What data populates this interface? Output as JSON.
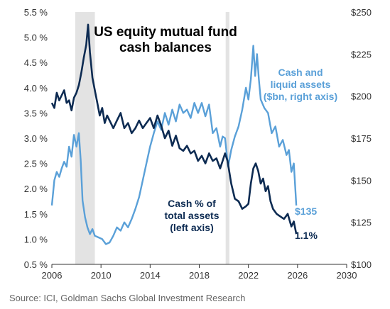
{
  "chart_data": {
    "type": "line",
    "title_lines": [
      "US equity mutual fund",
      "cash balances"
    ],
    "source": "Source: ICI, Goldman Sachs Global Investment Research",
    "x_ticks": [
      "2006",
      "2010",
      "2014",
      "2018",
      "2022",
      "2026",
      "2030"
    ],
    "xlim": [
      2006,
      2030
    ],
    "y_left": {
      "ticks": [
        "0.5 %",
        "1.0 %",
        "1.5 %",
        "2.0 %",
        "2.5 %",
        "3.0 %",
        "3.5 %",
        "4.0 %",
        "4.5 %",
        "5.0 %",
        "5.5 %"
      ],
      "ylim": [
        0.5,
        5.5
      ]
    },
    "y_right": {
      "ticks": [
        "$100",
        "$125",
        "$150",
        "$175",
        "$200",
        "$225",
        "$250"
      ],
      "ylim": [
        100,
        250
      ]
    },
    "shaded_periods": [
      [
        2007.9,
        2009.5
      ],
      [
        2020.15,
        2020.45
      ]
    ],
    "colors": {
      "cash_pct": "#0d2b52",
      "cash_assets": "#5aa0d8",
      "shade": "#e3e3e3"
    },
    "series": [
      {
        "key": "cash_pct",
        "axis": "left",
        "label_lines": [
          "Cash % of",
          "total assets",
          "(left axis)"
        ],
        "end_label": "1.1%",
        "points": [
          [
            2006.0,
            3.7
          ],
          [
            2006.2,
            3.6
          ],
          [
            2006.4,
            3.9
          ],
          [
            2006.6,
            3.75
          ],
          [
            2006.8,
            3.85
          ],
          [
            2007.0,
            3.95
          ],
          [
            2007.2,
            3.7
          ],
          [
            2007.4,
            3.75
          ],
          [
            2007.6,
            3.55
          ],
          [
            2007.8,
            3.8
          ],
          [
            2008.0,
            3.9
          ],
          [
            2008.2,
            4.05
          ],
          [
            2008.4,
            4.3
          ],
          [
            2008.6,
            4.6
          ],
          [
            2008.8,
            4.85
          ],
          [
            2008.95,
            5.25
          ],
          [
            2009.1,
            4.7
          ],
          [
            2009.3,
            4.2
          ],
          [
            2009.5,
            3.95
          ],
          [
            2009.7,
            3.7
          ],
          [
            2009.9,
            3.45
          ],
          [
            2010.1,
            3.6
          ],
          [
            2010.3,
            3.3
          ],
          [
            2010.5,
            3.45
          ],
          [
            2010.8,
            3.3
          ],
          [
            2011.0,
            3.2
          ],
          [
            2011.3,
            3.35
          ],
          [
            2011.6,
            3.5
          ],
          [
            2011.9,
            3.2
          ],
          [
            2012.2,
            3.3
          ],
          [
            2012.5,
            3.1
          ],
          [
            2012.8,
            3.2
          ],
          [
            2013.1,
            3.35
          ],
          [
            2013.4,
            3.2
          ],
          [
            2013.7,
            3.3
          ],
          [
            2014.0,
            3.4
          ],
          [
            2014.3,
            3.2
          ],
          [
            2014.6,
            3.45
          ],
          [
            2014.9,
            3.25
          ],
          [
            2015.2,
            3.0
          ],
          [
            2015.5,
            3.15
          ],
          [
            2015.8,
            2.85
          ],
          [
            2016.1,
            3.05
          ],
          [
            2016.4,
            2.8
          ],
          [
            2016.7,
            2.75
          ],
          [
            2017.0,
            2.85
          ],
          [
            2017.3,
            2.7
          ],
          [
            2017.6,
            2.75
          ],
          [
            2017.9,
            2.55
          ],
          [
            2018.2,
            2.65
          ],
          [
            2018.5,
            2.5
          ],
          [
            2018.8,
            2.7
          ],
          [
            2019.1,
            2.55
          ],
          [
            2019.4,
            2.6
          ],
          [
            2019.7,
            2.4
          ],
          [
            2019.9,
            2.55
          ],
          [
            2020.1,
            2.7
          ],
          [
            2020.3,
            2.55
          ],
          [
            2020.6,
            2.1
          ],
          [
            2020.9,
            1.8
          ],
          [
            2021.2,
            1.75
          ],
          [
            2021.5,
            1.6
          ],
          [
            2021.8,
            1.65
          ],
          [
            2022.0,
            1.7
          ],
          [
            2022.2,
            2.1
          ],
          [
            2022.4,
            2.4
          ],
          [
            2022.6,
            2.5
          ],
          [
            2022.8,
            2.35
          ],
          [
            2023.0,
            2.1
          ],
          [
            2023.2,
            2.2
          ],
          [
            2023.4,
            1.95
          ],
          [
            2023.6,
            2.05
          ],
          [
            2023.8,
            1.75
          ],
          [
            2024.0,
            1.6
          ],
          [
            2024.3,
            1.5
          ],
          [
            2024.6,
            1.45
          ],
          [
            2024.9,
            1.4
          ],
          [
            2025.2,
            1.5
          ],
          [
            2025.5,
            1.25
          ],
          [
            2025.7,
            1.35
          ],
          [
            2025.9,
            1.1
          ]
        ]
      },
      {
        "key": "cash_assets",
        "axis": "right",
        "label_lines": [
          "Cash and",
          "liquid assets",
          "($bn, right axis)"
        ],
        "end_label": "$135",
        "points": [
          [
            2006.0,
            135
          ],
          [
            2006.2,
            150
          ],
          [
            2006.4,
            155
          ],
          [
            2006.6,
            152
          ],
          [
            2006.8,
            157
          ],
          [
            2007.0,
            161
          ],
          [
            2007.2,
            158
          ],
          [
            2007.4,
            170
          ],
          [
            2007.6,
            164
          ],
          [
            2007.8,
            177
          ],
          [
            2008.0,
            170
          ],
          [
            2008.2,
            178
          ],
          [
            2008.35,
            162
          ],
          [
            2008.5,
            138
          ],
          [
            2008.7,
            128
          ],
          [
            2008.9,
            122
          ],
          [
            2009.1,
            118
          ],
          [
            2009.3,
            121
          ],
          [
            2009.5,
            117
          ],
          [
            2009.8,
            116
          ],
          [
            2010.1,
            115
          ],
          [
            2010.4,
            112
          ],
          [
            2010.7,
            113
          ],
          [
            2011.0,
            117
          ],
          [
            2011.3,
            122
          ],
          [
            2011.6,
            120
          ],
          [
            2011.9,
            125
          ],
          [
            2012.2,
            122
          ],
          [
            2012.5,
            127
          ],
          [
            2012.8,
            133
          ],
          [
            2013.1,
            140
          ],
          [
            2013.4,
            150
          ],
          [
            2013.7,
            160
          ],
          [
            2014.0,
            170
          ],
          [
            2014.3,
            178
          ],
          [
            2014.6,
            185
          ],
          [
            2014.9,
            180
          ],
          [
            2015.2,
            190
          ],
          [
            2015.5,
            183
          ],
          [
            2015.8,
            192
          ],
          [
            2016.1,
            185
          ],
          [
            2016.4,
            195
          ],
          [
            2016.7,
            190
          ],
          [
            2017.0,
            192
          ],
          [
            2017.3,
            187
          ],
          [
            2017.6,
            196
          ],
          [
            2017.9,
            190
          ],
          [
            2018.2,
            196
          ],
          [
            2018.5,
            188
          ],
          [
            2018.8,
            195
          ],
          [
            2019.1,
            178
          ],
          [
            2019.4,
            181
          ],
          [
            2019.7,
            170
          ],
          [
            2019.9,
            176
          ],
          [
            2020.1,
            175
          ],
          [
            2020.35,
            158
          ],
          [
            2020.6,
            168
          ],
          [
            2020.9,
            176
          ],
          [
            2021.2,
            182
          ],
          [
            2021.5,
            192
          ],
          [
            2021.8,
            205
          ],
          [
            2022.0,
            198
          ],
          [
            2022.2,
            210
          ],
          [
            2022.4,
            230
          ],
          [
            2022.55,
            212
          ],
          [
            2022.7,
            225
          ],
          [
            2022.85,
            210
          ],
          [
            2023.0,
            198
          ],
          [
            2023.3,
            193
          ],
          [
            2023.6,
            190
          ],
          [
            2023.9,
            178
          ],
          [
            2024.2,
            182
          ],
          [
            2024.5,
            170
          ],
          [
            2024.8,
            174
          ],
          [
            2025.1,
            165
          ],
          [
            2025.3,
            168
          ],
          [
            2025.5,
            155
          ],
          [
            2025.7,
            160
          ],
          [
            2025.9,
            135
          ]
        ]
      }
    ]
  }
}
